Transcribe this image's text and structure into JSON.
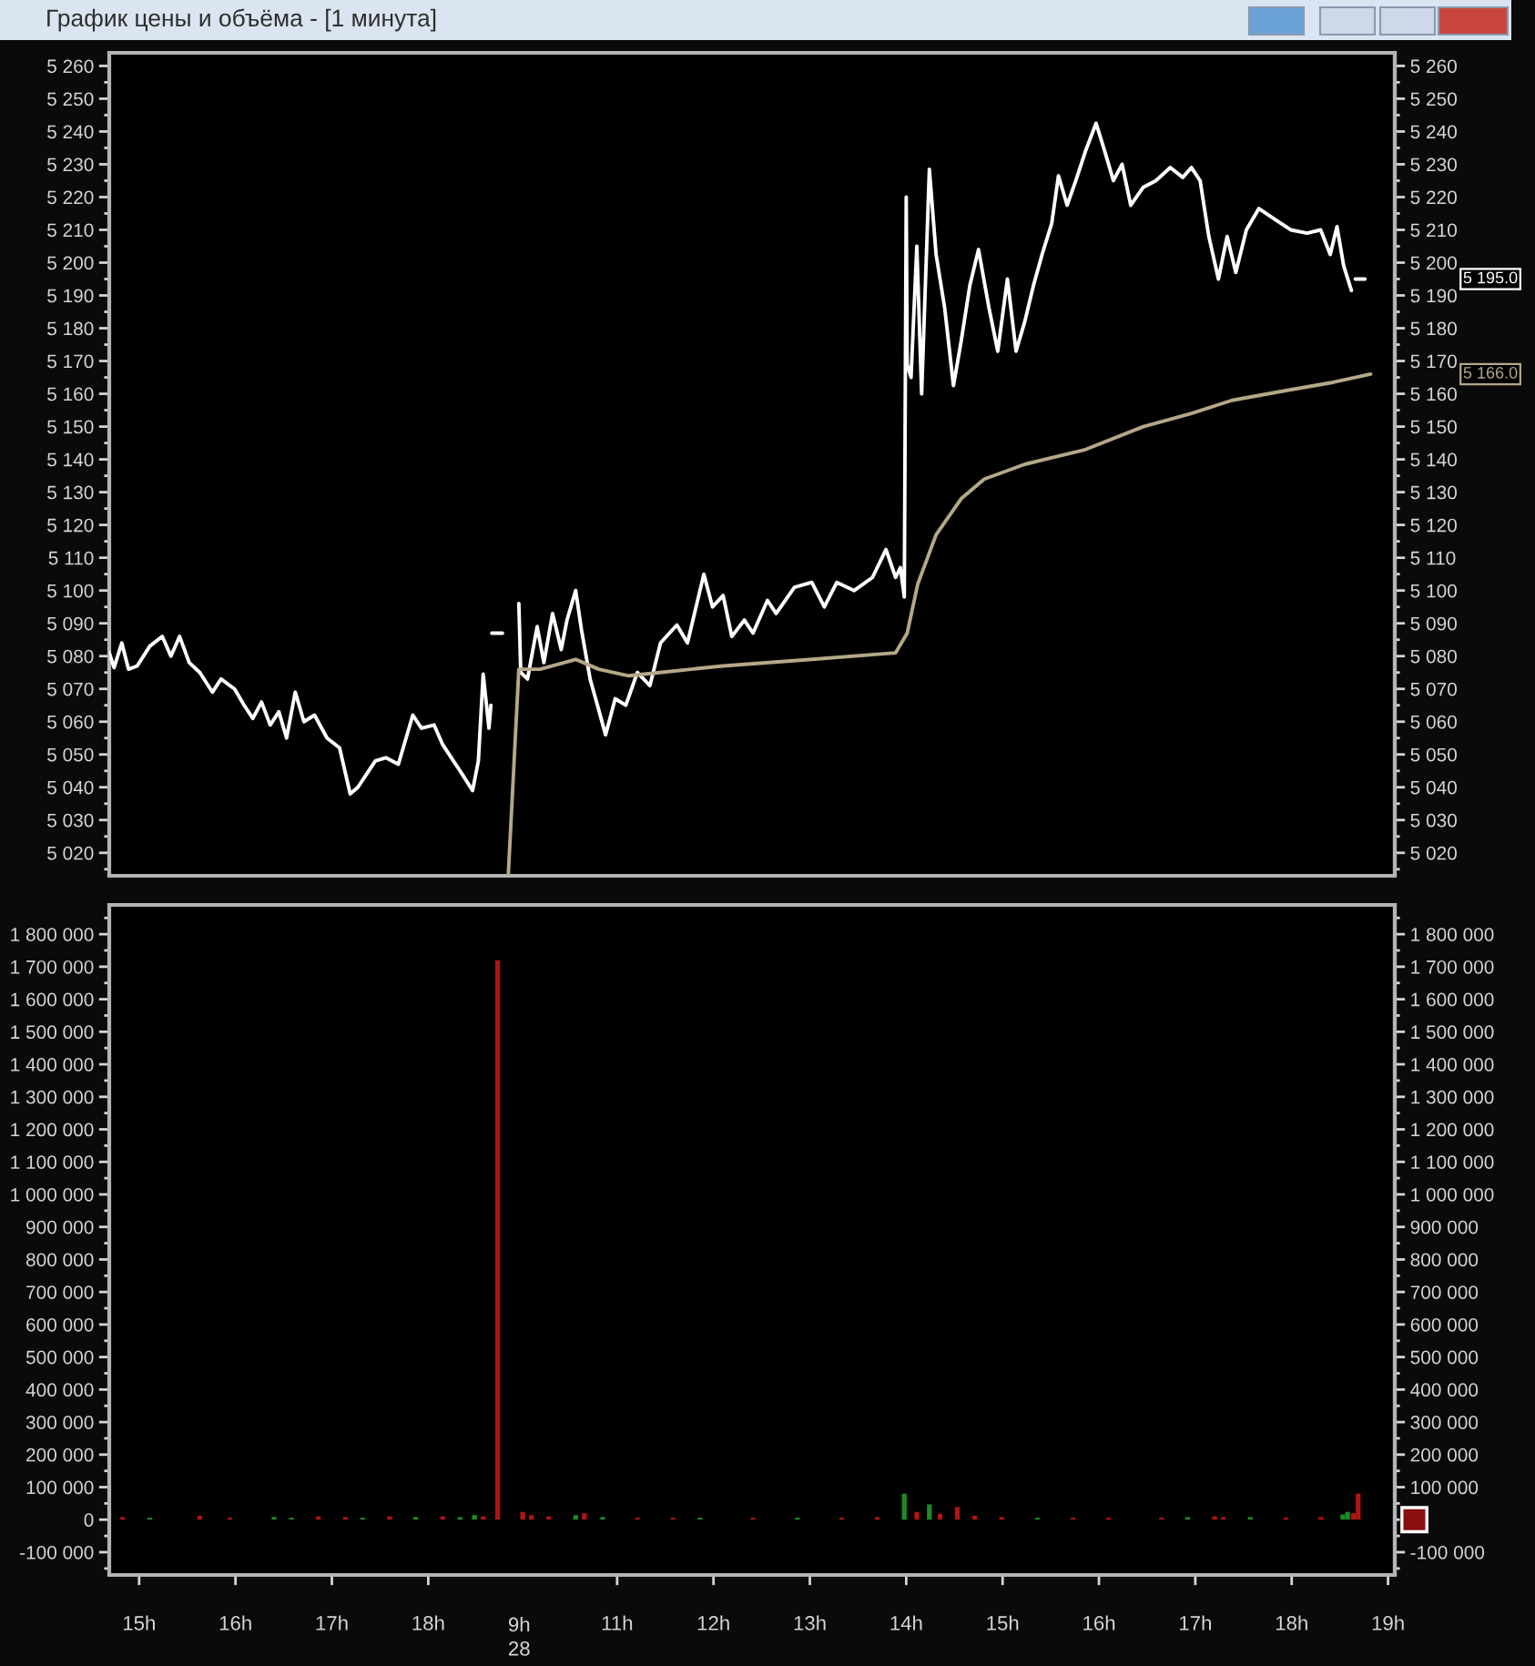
{
  "chart_data": [
    {
      "type": "line",
      "title": "График цены и объёма - [1 минута]",
      "tick_labels": "y",
      "line_style": "solid",
      "xlim": [
        14.69,
        18.79
      ],
      "ylim": [
        5013,
        5264
      ],
      "yticks": [
        {
          "value": 5015,
          "label": null
        },
        {
          "value": 5020,
          "label": "5 020"
        },
        {
          "value": 5025,
          "label": null
        },
        {
          "value": 5030,
          "label": "5 030"
        },
        {
          "value": 5035,
          "label": null
        },
        {
          "value": 5040,
          "label": "5 040"
        },
        {
          "value": 5045,
          "label": null
        },
        {
          "value": 5050,
          "label": "5 050"
        },
        {
          "value": 5055,
          "label": null
        },
        {
          "value": 5060,
          "label": "5 060"
        },
        {
          "value": 5065,
          "label": null
        },
        {
          "value": 5070,
          "label": "5 070"
        },
        {
          "value": 5075,
          "label": null
        },
        {
          "value": 5080,
          "label": "5 080"
        },
        {
          "value": 5085,
          "label": null
        },
        {
          "value": 5090,
          "label": "5 090"
        },
        {
          "value": 5095,
          "label": null
        },
        {
          "value": 5100,
          "label": "5 100"
        },
        {
          "value": 5105,
          "label": null
        },
        {
          "value": 5110,
          "label": "5 110"
        },
        {
          "value": 5115,
          "label": null
        },
        {
          "value": 5120,
          "label": "5 120"
        },
        {
          "value": 5125,
          "label": null
        },
        {
          "value": 5130,
          "label": "5 130"
        },
        {
          "value": 5135,
          "label": null
        },
        {
          "value": 5140,
          "label": "5 140"
        },
        {
          "value": 5145,
          "label": null
        },
        {
          "value": 5150,
          "label": "5 150"
        },
        {
          "value": 5155,
          "label": null
        },
        {
          "value": 5160,
          "label": "5 160"
        },
        {
          "value": 5165,
          "label": null
        },
        {
          "value": 5170,
          "label": "5 170"
        },
        {
          "value": 5175,
          "label": null
        },
        {
          "value": 5180,
          "label": "5 180"
        },
        {
          "value": 5185,
          "label": null
        },
        {
          "value": 5190,
          "label": "5 190"
        },
        {
          "value": 5195,
          "label": null
        },
        {
          "value": 5200,
          "label": "5 200"
        },
        {
          "value": 5205,
          "label": null
        },
        {
          "value": 5210,
          "label": "5 210"
        },
        {
          "value": 5215,
          "label": null
        },
        {
          "value": 5220,
          "label": "5 220"
        },
        {
          "value": 5225,
          "label": null
        },
        {
          "value": 5230,
          "label": "5 230"
        },
        {
          "value": 5235,
          "label": null
        },
        {
          "value": 5240,
          "label": "5 240"
        },
        {
          "value": 5245,
          "label": null
        },
        {
          "value": 5250,
          "label": "5 250"
        },
        {
          "value": 5255,
          "label": null
        },
        {
          "value": 5260,
          "label": "5 260"
        }
      ],
      "series": [
        {
          "color": "#ffffff",
          "x": [
            14.69,
            14.74,
            14.82,
            14.89,
            14.98,
            15.11,
            15.24,
            15.33,
            15.42,
            15.52,
            15.63,
            15.76,
            15.85,
            15.99,
            16.09,
            16.18,
            16.27,
            16.36,
            16.45,
            16.53,
            16.62,
            16.71,
            16.82,
            16.95,
            17.08,
            17.19,
            17.27,
            17.36,
            17.45,
            17.56,
            17.69,
            17.84,
            17.93,
            18.06,
            18.15,
            18.24,
            18.33,
            18.46,
            18.52,
            18.57,
            18.63,
            18.65,
            18.655,
            18.66,
            18.77
          ],
          "values": [
            5081,
            5076.5,
            5084,
            5076,
            5077,
            5083,
            5086,
            5080,
            5086,
            5078,
            5075,
            5069,
            5073,
            5070,
            5065,
            5061,
            5066,
            5059,
            5063,
            5055,
            5069,
            5060,
            5062,
            5055,
            5052,
            5038,
            5040,
            5044,
            5048,
            5049,
            5047,
            5062,
            5058,
            5059,
            5053,
            5049,
            5045,
            5039,
            5048,
            5074.5,
            5058,
            5065,
            null,
            5087,
            5087
          ]
        }
      ]
    },
    {
      "type": "line",
      "tick_labels": "y",
      "line_style": "solid",
      "xlim": [
        9.83,
        19.07
      ],
      "ylim": [
        5013,
        5264
      ],
      "y2lim": [
        5013,
        5264
      ],
      "y2ticks": [
        {
          "value": 5015,
          "label": null
        },
        {
          "value": 5020,
          "label": "5 020"
        },
        {
          "value": 5025,
          "label": null
        },
        {
          "value": 5030,
          "label": "5 030"
        },
        {
          "value": 5035,
          "label": null
        },
        {
          "value": 5040,
          "label": "5 040"
        },
        {
          "value": 5045,
          "label": null
        },
        {
          "value": 5050,
          "label": "5 050"
        },
        {
          "value": 5055,
          "label": null
        },
        {
          "value": 5060,
          "label": "5 060"
        },
        {
          "value": 5065,
          "label": null
        },
        {
          "value": 5070,
          "label": "5 070"
        },
        {
          "value": 5075,
          "label": null
        },
        {
          "value": 5080,
          "label": "5 080"
        },
        {
          "value": 5085,
          "label": null
        },
        {
          "value": 5090,
          "label": "5 090"
        },
        {
          "value": 5095,
          "label": null
        },
        {
          "value": 5100,
          "label": "5 100"
        },
        {
          "value": 5105,
          "label": null
        },
        {
          "value": 5110,
          "label": "5 110"
        },
        {
          "value": 5115,
          "label": null
        },
        {
          "value": 5120,
          "label": "5 120"
        },
        {
          "value": 5125,
          "label": null
        },
        {
          "value": 5130,
          "label": "5 130"
        },
        {
          "value": 5135,
          "label": null
        },
        {
          "value": 5140,
          "label": "5 140"
        },
        {
          "value": 5145,
          "label": null
        },
        {
          "value": 5150,
          "label": "5 150"
        },
        {
          "value": 5155,
          "label": null
        },
        {
          "value": 5160,
          "label": "5 160"
        },
        {
          "value": 5165,
          "label": null
        },
        {
          "value": 5170,
          "label": "5 170"
        },
        {
          "value": 5175,
          "label": null
        },
        {
          "value": 5180,
          "label": "5 180"
        },
        {
          "value": 5185,
          "label": null
        },
        {
          "value": 5190,
          "label": "5 190"
        },
        {
          "value": 5195,
          "label": null
        },
        {
          "value": 5200,
          "label": "5 200"
        },
        {
          "value": 5205,
          "label": null
        },
        {
          "value": 5210,
          "label": "5 210"
        },
        {
          "value": 5215,
          "label": null
        },
        {
          "value": 5220,
          "label": "5 220"
        },
        {
          "value": 5225,
          "label": null
        },
        {
          "value": 5230,
          "label": "5 230"
        },
        {
          "value": 5235,
          "label": null
        },
        {
          "value": 5240,
          "label": "5 240"
        },
        {
          "value": 5245,
          "label": null
        },
        {
          "value": 5250,
          "label": "5 250"
        },
        {
          "value": 5255,
          "label": null
        },
        {
          "value": 5260,
          "label": "5 260"
        }
      ],
      "series": [
        {
          "color": "#ffffff",
          "x": [
            9.98,
            10.0,
            10.07,
            10.17,
            10.24,
            10.33,
            10.42,
            10.48,
            10.57,
            10.63,
            10.72,
            10.81,
            10.88,
            10.98,
            11.09,
            11.21,
            11.34,
            11.45,
            11.62,
            11.73,
            11.9,
            11.99,
            12.1,
            12.19,
            12.32,
            12.41,
            12.56,
            12.65,
            12.84,
            13.02,
            13.15,
            13.28,
            13.46,
            13.65,
            13.79,
            13.89,
            13.94,
            13.98,
            14.0,
            14.01,
            14.05,
            14.11,
            14.16,
            14.24,
            14.31,
            14.4,
            14.49,
            14.57,
            14.66,
            14.75,
            14.86,
            14.95,
            15.05,
            15.14,
            15.23,
            15.32,
            15.41,
            15.51,
            15.58,
            15.67,
            15.76,
            15.86,
            15.97,
            16.06,
            16.15,
            16.24,
            16.33,
            16.46,
            16.59,
            16.74,
            16.87,
            16.96,
            17.05,
            17.14,
            17.24,
            17.33,
            17.42,
            17.53,
            17.66,
            17.81,
            17.99,
            18.16,
            18.3,
            18.4,
            18.47,
            18.54,
            18.62,
            18.64,
            18.66,
            18.76
          ],
          "values": [
            5096,
            5075,
            5073,
            5089,
            5078,
            5093,
            5082,
            5091,
            5100,
            5088,
            5073,
            5063.5,
            5056,
            5067,
            5065,
            5075,
            5071,
            5084,
            5089.5,
            5084,
            5105,
            5095,
            5098.5,
            5086,
            5091,
            5087,
            5097,
            5093,
            5101,
            5102.5,
            5095,
            5102.5,
            5100,
            5104,
            5112.5,
            5104,
            5107,
            5098,
            5220,
            5169,
            5165,
            5205,
            5160,
            5228.5,
            5202.5,
            5186,
            5162.5,
            5176,
            5193,
            5204,
            5186,
            5173,
            5195,
            5173,
            5182,
            5193,
            5202.5,
            5212,
            5226.5,
            5217.5,
            5225,
            5234,
            5242.5,
            5234,
            5225,
            5230,
            5217.5,
            5223,
            5225,
            5229,
            5226,
            5229,
            5225,
            5208,
            5195,
            5208,
            5197,
            5210,
            5216.5,
            5213.5,
            5210,
            5209,
            5210,
            5202.5,
            5211,
            5199,
            5191.5,
            null,
            5195,
            5195
          ]
        },
        {
          "color": "#b5a888",
          "x": [
            9.87,
            9.98,
            10.2,
            10.57,
            10.81,
            11.12,
            11.44,
            12.1,
            13.02,
            13.89,
            14.01,
            14.12,
            14.31,
            14.57,
            14.81,
            15.23,
            15.86,
            16.46,
            16.96,
            17.38,
            17.94,
            18.43,
            18.82
          ],
          "values": [
            5013,
            5076,
            5076,
            5079,
            5076,
            5074,
            5075,
            5077,
            5079,
            5081,
            5087,
            5102,
            5117,
            5128,
            5134,
            5138.5,
            5143,
            5150,
            5154,
            5158,
            5161,
            5163.5,
            5166
          ]
        }
      ],
      "annotations": [
        "5 195.0",
        "5 166.0"
      ]
    },
    {
      "type": "bar",
      "xlim": [
        14.69,
        18.79
      ],
      "ylim": [
        -170000,
        1890000
      ],
      "xticks": [
        {
          "value": 15,
          "label": "15h"
        },
        {
          "value": 16,
          "label": "16h"
        },
        {
          "value": 17,
          "label": "17h"
        },
        {
          "value": 18,
          "label": "18h"
        }
      ],
      "yticks": [
        {
          "value": -150000,
          "label": null
        },
        {
          "value": -100000,
          "label": "-100 000"
        },
        {
          "value": -50000,
          "label": null
        },
        {
          "value": 0,
          "label": "0"
        },
        {
          "value": 50000,
          "label": null
        },
        {
          "value": 100000,
          "label": "100 000"
        },
        {
          "value": 150000,
          "label": null
        },
        {
          "value": 200000,
          "label": "200 000"
        },
        {
          "value": 250000,
          "label": null
        },
        {
          "value": 300000,
          "label": "300 000"
        },
        {
          "value": 350000,
          "label": null
        },
        {
          "value": 400000,
          "label": "400 000"
        },
        {
          "value": 450000,
          "label": null
        },
        {
          "value": 500000,
          "label": "500 000"
        },
        {
          "value": 550000,
          "label": null
        },
        {
          "value": 600000,
          "label": "600 000"
        },
        {
          "value": 650000,
          "label": null
        },
        {
          "value": 700000,
          "label": "700 000"
        },
        {
          "value": 750000,
          "label": null
        },
        {
          "value": 800000,
          "label": "800 000"
        },
        {
          "value": 850000,
          "label": null
        },
        {
          "value": 900000,
          "label": "900 000"
        },
        {
          "value": 950000,
          "label": null
        },
        {
          "value": 1000000,
          "label": "1 000 000"
        },
        {
          "value": 1050000,
          "label": null
        },
        {
          "value": 1100000,
          "label": "1 100 000"
        },
        {
          "value": 1150000,
          "label": null
        },
        {
          "value": 1200000,
          "label": "1 200 000"
        },
        {
          "value": 1250000,
          "label": null
        },
        {
          "value": 1300000,
          "label": "1 300 000"
        },
        {
          "value": 1350000,
          "label": null
        },
        {
          "value": 1400000,
          "label": "1 400 000"
        },
        {
          "value": 1450000,
          "label": null
        },
        {
          "value": 1500000,
          "label": "1 500 000"
        },
        {
          "value": 1550000,
          "label": null
        },
        {
          "value": 1600000,
          "label": "1 600 000"
        },
        {
          "value": 1650000,
          "label": null
        },
        {
          "value": 1700000,
          "label": "1 700 000"
        },
        {
          "value": 1750000,
          "label": null
        },
        {
          "value": 1800000,
          "label": "1 800 000"
        },
        {
          "value": 1850000,
          "label": null
        }
      ],
      "x": [
        14.83,
        15.11,
        15.63,
        15.94,
        16.4,
        16.58,
        16.86,
        17.14,
        17.32,
        17.6,
        17.87,
        18.15,
        18.33,
        18.48,
        18.57,
        18.72
      ],
      "values": [
        8000,
        6000,
        12000,
        6000,
        8000,
        6000,
        10000,
        8000,
        6000,
        10000,
        8000,
        10000,
        8000,
        14000,
        10000,
        1720000
      ],
      "colors": [
        "#b01414",
        "#1f8a24",
        "#b01414",
        "#b01414",
        "#1f8a24",
        "#1f8a24",
        "#b01414",
        "#b01414",
        "#1f8a24",
        "#b01414",
        "#1f8a24",
        "#b01414",
        "#1f8a24",
        "#1f8a24",
        "#b01414",
        "#b01414"
      ]
    },
    {
      "type": "bar",
      "xlabel": "9h\n28",
      "xlim": [
        9.83,
        19.07
      ],
      "ylim": [
        -170000,
        1890000
      ],
      "y2lim": [
        -170000,
        1890000
      ],
      "xticks": [
        {
          "value": 11,
          "label": "11h"
        },
        {
          "value": 12,
          "label": "12h"
        },
        {
          "value": 13,
          "label": "13h"
        },
        {
          "value": 14,
          "label": "14h"
        },
        {
          "value": 15,
          "label": "15h"
        },
        {
          "value": 16,
          "label": "16h"
        },
        {
          "value": 17,
          "label": "17h"
        },
        {
          "value": 18,
          "label": "18h"
        },
        {
          "value": 19,
          "label": "19h"
        }
      ],
      "y2ticks": [
        {
          "value": -150000,
          "label": null
        },
        {
          "value": -100000,
          "label": "-100 000"
        },
        {
          "value": -50000,
          "label": null
        },
        {
          "value": 0,
          "label": null
        },
        {
          "value": 50000,
          "label": null
        },
        {
          "value": 100000,
          "label": "100 000"
        },
        {
          "value": 150000,
          "label": null
        },
        {
          "value": 200000,
          "label": "200 000"
        },
        {
          "value": 250000,
          "label": null
        },
        {
          "value": 300000,
          "label": "300 000"
        },
        {
          "value": 350000,
          "label": null
        },
        {
          "value": 400000,
          "label": "400 000"
        },
        {
          "value": 450000,
          "label": null
        },
        {
          "value": 500000,
          "label": "500 000"
        },
        {
          "value": 550000,
          "label": null
        },
        {
          "value": 600000,
          "label": "600 000"
        },
        {
          "value": 650000,
          "label": null
        },
        {
          "value": 700000,
          "label": "700 000"
        },
        {
          "value": 750000,
          "label": null
        },
        {
          "value": 800000,
          "label": "800 000"
        },
        {
          "value": 850000,
          "label": null
        },
        {
          "value": 900000,
          "label": "900 000"
        },
        {
          "value": 950000,
          "label": null
        },
        {
          "value": 1000000,
          "label": "1 000 000"
        },
        {
          "value": 1050000,
          "label": null
        },
        {
          "value": 1100000,
          "label": "1 100 000"
        },
        {
          "value": 1150000,
          "label": null
        },
        {
          "value": 1200000,
          "label": "1 200 000"
        },
        {
          "value": 1250000,
          "label": null
        },
        {
          "value": 1300000,
          "label": "1 300 000"
        },
        {
          "value": 1350000,
          "label": null
        },
        {
          "value": 1400000,
          "label": "1 400 000"
        },
        {
          "value": 1450000,
          "label": null
        },
        {
          "value": 1500000,
          "label": "1 500 000"
        },
        {
          "value": 1550000,
          "label": null
        },
        {
          "value": 1600000,
          "label": "1 600 000"
        },
        {
          "value": 1650000,
          "label": null
        },
        {
          "value": 1700000,
          "label": "1 700 000"
        },
        {
          "value": 1750000,
          "label": null
        },
        {
          "value": 1800000,
          "label": "1 800 000"
        },
        {
          "value": 1850000,
          "label": null
        }
      ],
      "x": [
        10.02,
        10.11,
        10.29,
        10.57,
        10.66,
        10.85,
        11.21,
        11.58,
        11.86,
        12.41,
        12.87,
        13.33,
        13.7,
        13.98,
        14.11,
        14.24,
        14.35,
        14.53,
        14.71,
        14.99,
        15.36,
        15.73,
        16.1,
        16.65,
        16.92,
        17.2,
        17.29,
        17.57,
        17.94,
        18.3,
        18.53,
        18.58,
        18.64,
        18.69
      ],
      "values": [
        24000,
        14000,
        10000,
        14000,
        20000,
        8000,
        6000,
        6000,
        6000,
        6000,
        6000,
        6000,
        8000,
        80000,
        24000,
        47000,
        18000,
        39000,
        12000,
        8000,
        6000,
        6000,
        6000,
        6000,
        8000,
        10000,
        8000,
        8000,
        6000,
        8000,
        16000,
        24000,
        20000,
        80000
      ],
      "colors": [
        "#b01414",
        "#b01414",
        "#b01414",
        "#1f8a24",
        "#b01414",
        "#1f8a24",
        "#b01414",
        "#b01414",
        "#1f8a24",
        "#b01414",
        "#1f8a24",
        "#b01414",
        "#b01414",
        "#1f8a24",
        "#b01414",
        "#1f8a24",
        "#b01414",
        "#b01414",
        "#b01414",
        "#b01414",
        "#1f8a24",
        "#b01414",
        "#b01414",
        "#b01414",
        "#1f8a24",
        "#b01414",
        "#b01414",
        "#1f8a24",
        "#b01414",
        "#b01414",
        "#1f8a24",
        "#1f8a24",
        "#b01414",
        "#b01414"
      ]
    }
  ]
}
